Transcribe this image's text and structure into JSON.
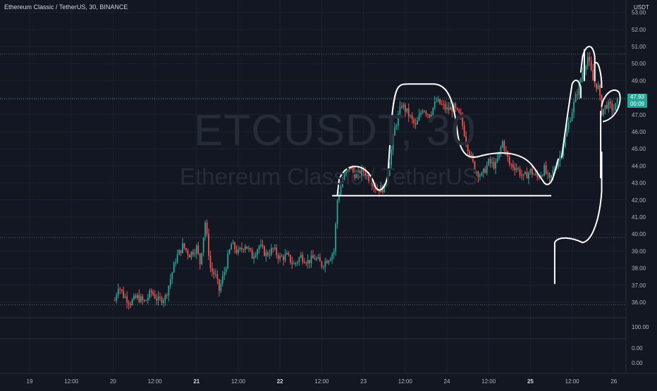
{
  "symbol": {
    "title": "Ethereum Classic / TetherUS, 30, BINANCE"
  },
  "watermark": {
    "ticker": "ETCUSDT, 30",
    "name": "Ethereum Classic / TetherUS"
  },
  "price_axis": {
    "unit": "USDT"
  },
  "last_price": {
    "value": "47.93",
    "countdown": "00:09",
    "color": "#26a69a"
  },
  "colors": {
    "up": "#26a69a",
    "down": "#ef5350",
    "background": "#131722",
    "drawing": "#ffffff"
  },
  "chart_data": {
    "type": "candlestick",
    "title": "",
    "price_ticks": [
      "53.00",
      "52.00",
      "51.00",
      "50.00",
      "49.00",
      "48.00",
      "47.00",
      "46.00",
      "45.00",
      "44.00",
      "43.00",
      "42.00",
      "41.00",
      "40.00",
      "39.00",
      "38.00",
      "37.00",
      "36.00"
    ],
    "ylim": [
      35.7,
      53.6
    ],
    "time_ticks": [
      {
        "label": "19",
        "day": 19,
        "hour": 0
      },
      {
        "label": "12:00",
        "day": 19,
        "hour": 12
      },
      {
        "label": "20",
        "day": 20,
        "hour": 0
      },
      {
        "label": "12:00",
        "day": 20,
        "hour": 12
      },
      {
        "label": "21",
        "day": 21,
        "hour": 0
      },
      {
        "label": "12:00",
        "day": 21,
        "hour": 12
      },
      {
        "label": "22",
        "day": 22,
        "hour": 0
      },
      {
        "label": "12:00",
        "day": 22,
        "hour": 12
      },
      {
        "label": "23",
        "day": 23,
        "hour": 0
      },
      {
        "label": "12:00",
        "day": 23,
        "hour": 12
      },
      {
        "label": "24",
        "day": 24,
        "hour": 0
      },
      {
        "label": "12:00",
        "day": 24,
        "hour": 12
      },
      {
        "label": "25",
        "day": 25,
        "hour": 0
      },
      {
        "label": "12:00",
        "day": 25,
        "hour": 12
      },
      {
        "label": "26",
        "day": 26,
        "hour": 0
      }
    ],
    "price_path": [
      {
        "day": 20,
        "hour": 0.5,
        "price": 36.1
      },
      {
        "day": 20,
        "hour": 1.5,
        "price": 37.0
      },
      {
        "day": 20,
        "hour": 3,
        "price": 36.4
      },
      {
        "day": 20,
        "hour": 5,
        "price": 36.0
      },
      {
        "day": 20,
        "hour": 7,
        "price": 36.3
      },
      {
        "day": 20,
        "hour": 9,
        "price": 36.0
      },
      {
        "day": 20,
        "hour": 11,
        "price": 36.6
      },
      {
        "day": 20,
        "hour": 13,
        "price": 36.1
      },
      {
        "day": 20,
        "hour": 15,
        "price": 36.3
      },
      {
        "day": 20,
        "hour": 16,
        "price": 37.0
      },
      {
        "day": 20,
        "hour": 18,
        "price": 38.5
      },
      {
        "day": 20,
        "hour": 20,
        "price": 39.3
      },
      {
        "day": 20,
        "hour": 22,
        "price": 38.8
      },
      {
        "day": 21,
        "hour": 0,
        "price": 39.2
      },
      {
        "day": 21,
        "hour": 1,
        "price": 38.3
      },
      {
        "day": 21,
        "hour": 2.5,
        "price": 40.7
      },
      {
        "day": 21,
        "hour": 4,
        "price": 38.0
      },
      {
        "day": 21,
        "hour": 5.5,
        "price": 37.5
      },
      {
        "day": 21,
        "hour": 6.5,
        "price": 36.7
      },
      {
        "day": 21,
        "hour": 8,
        "price": 37.8
      },
      {
        "day": 21,
        "hour": 10,
        "price": 39.4
      },
      {
        "day": 21,
        "hour": 12,
        "price": 38.9
      },
      {
        "day": 21,
        "hour": 14,
        "price": 39.4
      },
      {
        "day": 21,
        "hour": 16,
        "price": 38.7
      },
      {
        "day": 21,
        "hour": 18,
        "price": 39.3
      },
      {
        "day": 21,
        "hour": 20,
        "price": 38.8
      },
      {
        "day": 21,
        "hour": 22,
        "price": 39.1
      },
      {
        "day": 22,
        "hour": 0,
        "price": 38.6
      },
      {
        "day": 22,
        "hour": 2,
        "price": 38.7
      },
      {
        "day": 22,
        "hour": 4,
        "price": 38.2
      },
      {
        "day": 22,
        "hour": 6,
        "price": 38.7
      },
      {
        "day": 22,
        "hour": 8,
        "price": 38.4
      },
      {
        "day": 22,
        "hour": 10,
        "price": 38.6
      },
      {
        "day": 22,
        "hour": 12,
        "price": 38.2
      },
      {
        "day": 22,
        "hour": 14,
        "price": 38.6
      },
      {
        "day": 22,
        "hour": 15.5,
        "price": 39.0
      },
      {
        "day": 22,
        "hour": 16.5,
        "price": 42.0
      },
      {
        "day": 22,
        "hour": 18,
        "price": 43.2
      },
      {
        "day": 22,
        "hour": 20,
        "price": 43.9
      },
      {
        "day": 22,
        "hour": 22,
        "price": 43.4
      },
      {
        "day": 23,
        "hour": 0,
        "price": 43.7
      },
      {
        "day": 23,
        "hour": 2,
        "price": 43.2
      },
      {
        "day": 23,
        "hour": 4,
        "price": 42.6
      },
      {
        "day": 23,
        "hour": 6,
        "price": 42.7
      },
      {
        "day": 23,
        "hour": 7,
        "price": 43.6
      },
      {
        "day": 23,
        "hour": 9,
        "price": 46.2
      },
      {
        "day": 23,
        "hour": 11,
        "price": 47.6
      },
      {
        "day": 23,
        "hour": 13,
        "price": 47.0
      },
      {
        "day": 23,
        "hour": 15,
        "price": 46.3
      },
      {
        "day": 23,
        "hour": 17,
        "price": 47.4
      },
      {
        "day": 23,
        "hour": 19,
        "price": 47.0
      },
      {
        "day": 23,
        "hour": 21,
        "price": 47.8
      },
      {
        "day": 24,
        "hour": 0,
        "price": 47.3
      },
      {
        "day": 24,
        "hour": 2,
        "price": 47.4
      },
      {
        "day": 24,
        "hour": 4,
        "price": 46.8
      },
      {
        "day": 24,
        "hour": 6,
        "price": 45.1
      },
      {
        "day": 24,
        "hour": 8,
        "price": 43.8
      },
      {
        "day": 24,
        "hour": 10,
        "price": 43.4
      },
      {
        "day": 24,
        "hour": 12,
        "price": 44.2
      },
      {
        "day": 24,
        "hour": 14,
        "price": 44.0
      },
      {
        "day": 24,
        "hour": 16,
        "price": 45.4
      },
      {
        "day": 24,
        "hour": 18,
        "price": 44.1
      },
      {
        "day": 24,
        "hour": 20,
        "price": 43.9
      },
      {
        "day": 24,
        "hour": 22,
        "price": 43.3
      },
      {
        "day": 25,
        "hour": 0,
        "price": 43.7
      },
      {
        "day": 25,
        "hour": 2,
        "price": 43.3
      },
      {
        "day": 25,
        "hour": 4,
        "price": 43.8
      },
      {
        "day": 25,
        "hour": 5.5,
        "price": 43.1
      },
      {
        "day": 25,
        "hour": 7,
        "price": 43.9
      },
      {
        "day": 25,
        "hour": 9,
        "price": 44.8
      },
      {
        "day": 25,
        "hour": 11,
        "price": 46.5
      },
      {
        "day": 25,
        "hour": 13,
        "price": 48.0
      },
      {
        "day": 25,
        "hour": 15,
        "price": 49.5
      },
      {
        "day": 25,
        "hour": 16.5,
        "price": 50.4
      },
      {
        "day": 25,
        "hour": 18,
        "price": 49.0
      },
      {
        "day": 25,
        "hour": 19.5,
        "price": 48.6
      },
      {
        "day": 25,
        "hour": 20.5,
        "price": 47.2
      },
      {
        "day": 25,
        "hour": 22,
        "price": 47.6
      },
      {
        "day": 26,
        "hour": 0,
        "price": 47.3
      },
      {
        "day": 26,
        "hour": 1.5,
        "price": 47.93
      }
    ],
    "indicator_ticks": [
      "100.00",
      "0.00",
      "0.00"
    ],
    "indicator_levels": [
      100,
      0,
      0
    ]
  }
}
